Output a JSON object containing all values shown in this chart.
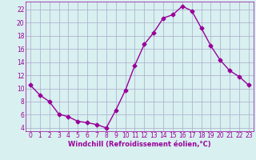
{
  "x": [
    0,
    1,
    2,
    3,
    4,
    5,
    6,
    7,
    8,
    9,
    10,
    11,
    12,
    13,
    14,
    15,
    16,
    17,
    18,
    19,
    20,
    21,
    22,
    23
  ],
  "y": [
    10.5,
    9.0,
    8.0,
    6.1,
    5.7,
    5.0,
    4.8,
    4.5,
    4.0,
    6.7,
    9.7,
    13.5,
    16.7,
    18.5,
    20.7,
    21.2,
    22.5,
    21.8,
    19.2,
    16.5,
    14.3,
    12.7,
    11.8,
    10.5
  ],
  "line_color": "#990099",
  "marker": "D",
  "marker_size": 2.5,
  "bg_color": "#d8f0f0",
  "grid_color": "#aaaacc",
  "xlabel": "Windchill (Refroidissement éolien,°C)",
  "xlim": [
    -0.5,
    23.5
  ],
  "ylim": [
    3.5,
    23.2
  ],
  "yticks": [
    4,
    6,
    8,
    10,
    12,
    14,
    16,
    18,
    20,
    22
  ],
  "xticks": [
    0,
    1,
    2,
    3,
    4,
    5,
    6,
    7,
    8,
    9,
    10,
    11,
    12,
    13,
    14,
    15,
    16,
    17,
    18,
    19,
    20,
    21,
    22,
    23
  ],
  "xlabel_color": "#990099",
  "tick_color": "#990099",
  "axis_color": "#990099",
  "linewidth": 1.0,
  "tick_fontsize": 5.5,
  "xlabel_fontsize": 6.0
}
